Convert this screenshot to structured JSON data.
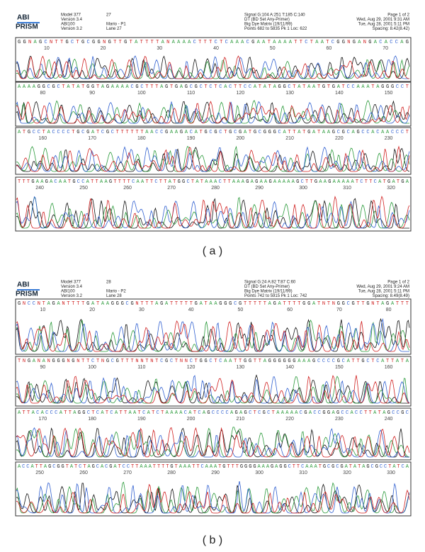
{
  "panels": [
    {
      "header": {
        "logo": [
          "ABI",
          "PRISM"
        ],
        "left": [
          "Model 377",
          "Version 3.4",
          "ABI100",
          "Version 3.2"
        ],
        "mid": {
          "sample": "27",
          "name": "Mario - P1",
          "lane": "Lane 27"
        },
        "run": [
          "Signal G:104 A:251 T:185 C:140",
          "DT (BD Set Any-Primer)",
          "Big Dye Matrix (19/11/99)",
          "Points 682 to 5835  Pk 1 Loc: 622"
        ],
        "right": [
          "Page 1 of 2",
          "Wed, Aug 29, 2001  9:31 AM",
          "Tue, Aug 28, 2001  5:11 PM",
          "Spacing: 8.42(8.42)"
        ]
      },
      "rows": [
        {
          "sequence": "GGNAGCNTTGCTGCGGNGTTGTATTTTANAAAACTTTCTCAAACGAATAAAATTCTAATCGGNGANGACACCAG",
          "positions": [
            10,
            20,
            30,
            40,
            50,
            60,
            70
          ]
        },
        {
          "sequence": "AAAAGGCGCTATATGGTAGAAAACGCTTTAGTGAGCGCTCTCACTTCCATATAGGCTATAATGTGATCCAAATAGGGCCT",
          "positions": [
            80,
            90,
            100,
            110,
            120,
            130,
            140,
            150
          ]
        },
        {
          "sequence": "ATGCCTACCCCTGCGATCGCTTTTTTAACCGAAGACATGCGCTGCGATGCGGGCATTATGATAAGCGCAGCCACAACCCT",
          "positions": [
            160,
            170,
            180,
            190,
            200,
            210,
            220,
            230
          ]
        },
        {
          "sequence": "TTTGAAGACAATGCCATTAAGTTTTCAATTCTTATGGCTATAAACTTAAAGAGAAGAAAAAGCTTGAAGAAAAATCTTCATGATGA",
          "positions": [
            240,
            250,
            260,
            270,
            280,
            290,
            300,
            310,
            320
          ]
        }
      ],
      "caption": "( a )"
    },
    {
      "header": {
        "logo": [
          "ABI",
          "PRISM"
        ],
        "left": [
          "Model 377",
          "Version 3.4",
          "ABI100",
          "Version 3.2"
        ],
        "mid": {
          "sample": "28",
          "name": "Mario - P2",
          "lane": "Lane 28"
        },
        "run": [
          "Signal G:24 A:82 T:87 C:60",
          "DT (BD Set Any-Primer)",
          "Big Dye Matrix (19/11/99)",
          "Points 742 to 5915  Pk 1 Loc: 742"
        ],
        "right": [
          "Page 1 of 2",
          "Wed, Aug 29, 2001  9:24 AM",
          "Tue, Aug 28, 2001  5:11 PM",
          "Spacing: 8.49(8.49)"
        ]
      },
      "rows": [
        {
          "sequence": "GNCCNTAGANTTTTGATAAGGGCGNTTTAGATTTTTGATAAGGGCGTTTTTAGATTTTGGATNTNGGCGTTGNTAGATTT",
          "positions": [
            10,
            20,
            30,
            40,
            50,
            60,
            70,
            80
          ]
        },
        {
          "sequence": "TNGANANGGGNGNTTCTNGCGTTTNNTNTCGCTNNCTGGCTCAATTGGTTAGGGGGGAAAGCCCCGCATTGCTCATTATA",
          "positions": [
            90,
            100,
            110,
            120,
            130,
            140,
            150,
            160
          ]
        },
        {
          "sequence": "ATTACACCCATTAGGCTCATCATTAATCATCTAAAACATCAGCCCCAGAGCTCGCTAAAAACGACCGGAGCCACCTTATAGCCGC",
          "positions": [
            170,
            180,
            190,
            200,
            210,
            220,
            230,
            240
          ]
        },
        {
          "sequence": "ACCATTAGCGGTATCTAGCACGATCCTTAAATTTTGTAAATTCAAATGTTTGGGGAAAGAGGCTTCAAATGCGCGATATAGCGCCTATCA",
          "positions": [
            250,
            260,
            270,
            280,
            290,
            300,
            310,
            320,
            330
          ]
        }
      ],
      "caption": "( b )"
    }
  ]
}
